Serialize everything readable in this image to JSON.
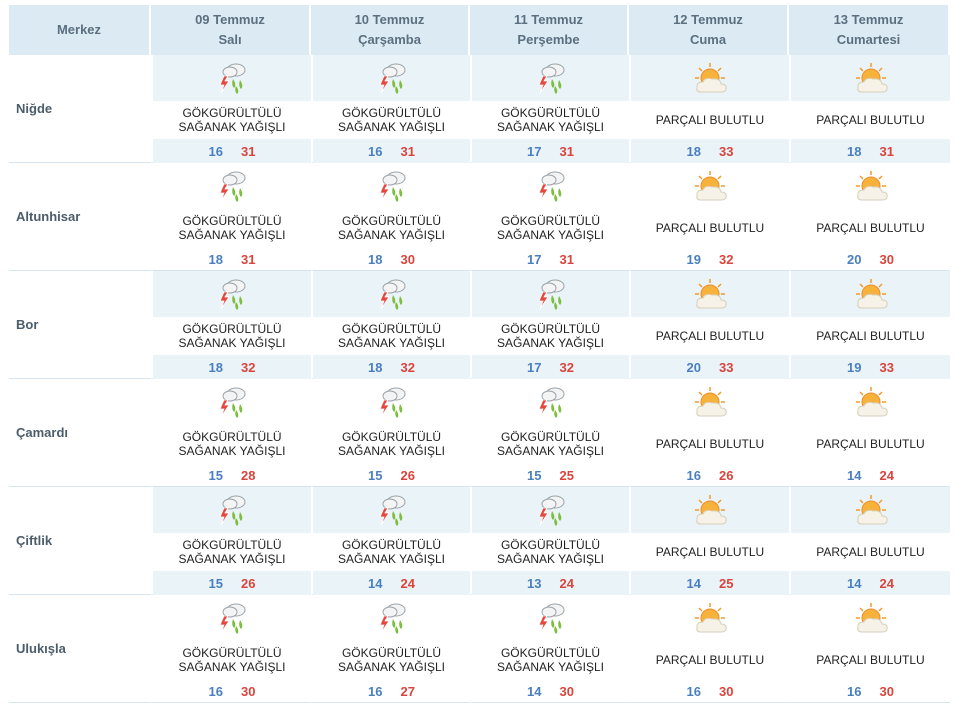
{
  "header": {
    "city_col": "Merkez",
    "days": [
      {
        "date": "09 Temmuz",
        "weekday": "Salı"
      },
      {
        "date": "10 Temmuz",
        "weekday": "Çarşamba"
      },
      {
        "date": "11 Temmuz",
        "weekday": "Perşembe"
      },
      {
        "date": "12 Temmuz",
        "weekday": "Cuma"
      },
      {
        "date": "13 Temmuz",
        "weekday": "Cumartesi"
      }
    ]
  },
  "conditions": {
    "storm": {
      "line1": "GÖKGÜRÜLTÜLÜ",
      "line2": "SAĞANAK YAĞIŞLI",
      "icon": "thunderstorm-rain-icon"
    },
    "partly": {
      "line1": "PARÇALI BULUTLU",
      "line2": "",
      "icon": "partly-cloudy-icon"
    }
  },
  "rows": [
    {
      "city": "Niğde",
      "days": [
        {
          "cond": "storm",
          "lo": "16",
          "hi": "31"
        },
        {
          "cond": "storm",
          "lo": "16",
          "hi": "31"
        },
        {
          "cond": "storm",
          "lo": "17",
          "hi": "31"
        },
        {
          "cond": "partly",
          "lo": "18",
          "hi": "33"
        },
        {
          "cond": "partly",
          "lo": "18",
          "hi": "31"
        }
      ]
    },
    {
      "city": "Altunhisar",
      "days": [
        {
          "cond": "storm",
          "lo": "18",
          "hi": "31"
        },
        {
          "cond": "storm",
          "lo": "18",
          "hi": "30"
        },
        {
          "cond": "storm",
          "lo": "17",
          "hi": "31"
        },
        {
          "cond": "partly",
          "lo": "19",
          "hi": "32"
        },
        {
          "cond": "partly",
          "lo": "20",
          "hi": "30"
        }
      ]
    },
    {
      "city": "Bor",
      "days": [
        {
          "cond": "storm",
          "lo": "18",
          "hi": "32"
        },
        {
          "cond": "storm",
          "lo": "18",
          "hi": "32"
        },
        {
          "cond": "storm",
          "lo": "17",
          "hi": "32"
        },
        {
          "cond": "partly",
          "lo": "20",
          "hi": "33"
        },
        {
          "cond": "partly",
          "lo": "19",
          "hi": "33"
        }
      ]
    },
    {
      "city": "Çamardı",
      "days": [
        {
          "cond": "storm",
          "lo": "15",
          "hi": "28"
        },
        {
          "cond": "storm",
          "lo": "15",
          "hi": "26"
        },
        {
          "cond": "storm",
          "lo": "15",
          "hi": "25"
        },
        {
          "cond": "partly",
          "lo": "16",
          "hi": "26"
        },
        {
          "cond": "partly",
          "lo": "14",
          "hi": "24"
        }
      ]
    },
    {
      "city": "Çiftlik",
      "days": [
        {
          "cond": "storm",
          "lo": "15",
          "hi": "26"
        },
        {
          "cond": "storm",
          "lo": "14",
          "hi": "24"
        },
        {
          "cond": "storm",
          "lo": "13",
          "hi": "24"
        },
        {
          "cond": "partly",
          "lo": "14",
          "hi": "25"
        },
        {
          "cond": "partly",
          "lo": "14",
          "hi": "24"
        }
      ]
    },
    {
      "city": "Ulukışla",
      "days": [
        {
          "cond": "storm",
          "lo": "16",
          "hi": "30"
        },
        {
          "cond": "storm",
          "lo": "16",
          "hi": "27"
        },
        {
          "cond": "storm",
          "lo": "14",
          "hi": "30"
        },
        {
          "cond": "partly",
          "lo": "16",
          "hi": "30"
        },
        {
          "cond": "partly",
          "lo": "16",
          "hi": "30"
        }
      ]
    }
  ],
  "colors": {
    "header_bg": "#dcebf3",
    "shade_bg": "#eaf3f8",
    "min_temp": "#4a7fbf",
    "max_temp": "#d9453c"
  }
}
